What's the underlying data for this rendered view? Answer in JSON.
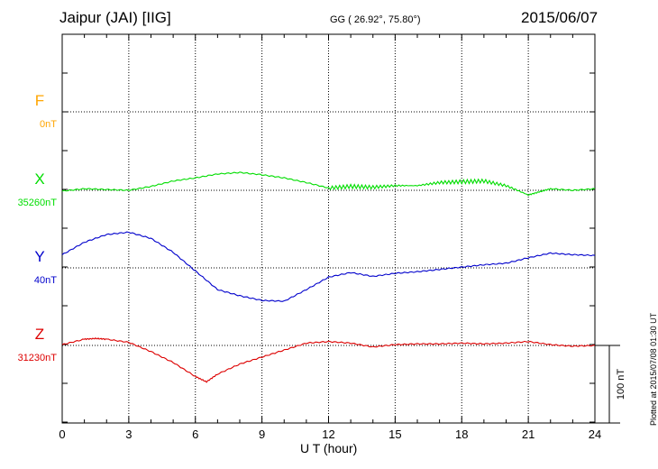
{
  "header": {
    "station": "Jaipur (JAI)  [IIG]",
    "coords": "GG ( 26.92°,  75.80°)",
    "date": "2015/06/07"
  },
  "footer": {
    "plotted": "Plotted at 2015/07/08 01:30 UT"
  },
  "colors": {
    "F": "#ffa500",
    "X": "#00dd00",
    "Y": "#0000cc",
    "Z": "#dd0000",
    "grid": "#000000"
  },
  "chart_data": {
    "type": "line",
    "title": "Jaipur (JAI)  [IIG]",
    "xlabel": "U T (hour)",
    "xlim": [
      0,
      24
    ],
    "x_ticks": [
      "0",
      "3",
      "6",
      "9",
      "12",
      "15",
      "18",
      "21",
      "24"
    ],
    "scale_bar_label": "100 nT",
    "scale_bar_nT": 100,
    "components": [
      {
        "name": "F",
        "baseline_label": "0nT",
        "baseline_nT": 0,
        "x": [],
        "values": []
      },
      {
        "name": "X",
        "baseline_label": "35260nT",
        "baseline_nT": 35260,
        "x": [
          0,
          1,
          2,
          3,
          4,
          5,
          6,
          7,
          8,
          9,
          10,
          11,
          12,
          13,
          14,
          15,
          16,
          17,
          18,
          19,
          20,
          21,
          21.5,
          22,
          23,
          24
        ],
        "values": [
          35259,
          35262,
          35261,
          35260,
          35265,
          35272,
          35276,
          35281,
          35283,
          35280,
          35276,
          35270,
          35263,
          35265,
          35264,
          35266,
          35266,
          35270,
          35271,
          35272,
          35266,
          35254,
          35258,
          35262,
          35260,
          35262
        ]
      },
      {
        "name": "Y",
        "baseline_label": "40nT",
        "baseline_nT": 40,
        "x": [
          0,
          1,
          2,
          3,
          4,
          5,
          6,
          7,
          8,
          9,
          10,
          11,
          12,
          13,
          14,
          15,
          16,
          17,
          18,
          19,
          20,
          21,
          22,
          23,
          24
        ],
        "values": [
          57,
          73,
          83,
          86,
          78,
          60,
          36,
          12,
          4,
          -2,
          -3,
          12,
          28,
          34,
          29,
          33,
          35,
          38,
          41,
          44,
          46,
          53,
          59,
          57,
          56
        ]
      },
      {
        "name": "Z",
        "baseline_label": "31230nT",
        "baseline_nT": 31230,
        "x": [
          0,
          1,
          1.5,
          2,
          3,
          4,
          5,
          6,
          6.5,
          7,
          8,
          9,
          10,
          11,
          12,
          13,
          14,
          15,
          16,
          17,
          18,
          19,
          20,
          21,
          22,
          23,
          24
        ],
        "values": [
          31231,
          31238,
          31239,
          31238,
          31234,
          31222,
          31208,
          31190,
          31183,
          31193,
          31206,
          31215,
          31224,
          31233,
          31235,
          31233,
          31228,
          31231,
          31232,
          31232,
          31233,
          31232,
          31233,
          31235,
          31231,
          31229,
          31230
        ]
      }
    ]
  }
}
